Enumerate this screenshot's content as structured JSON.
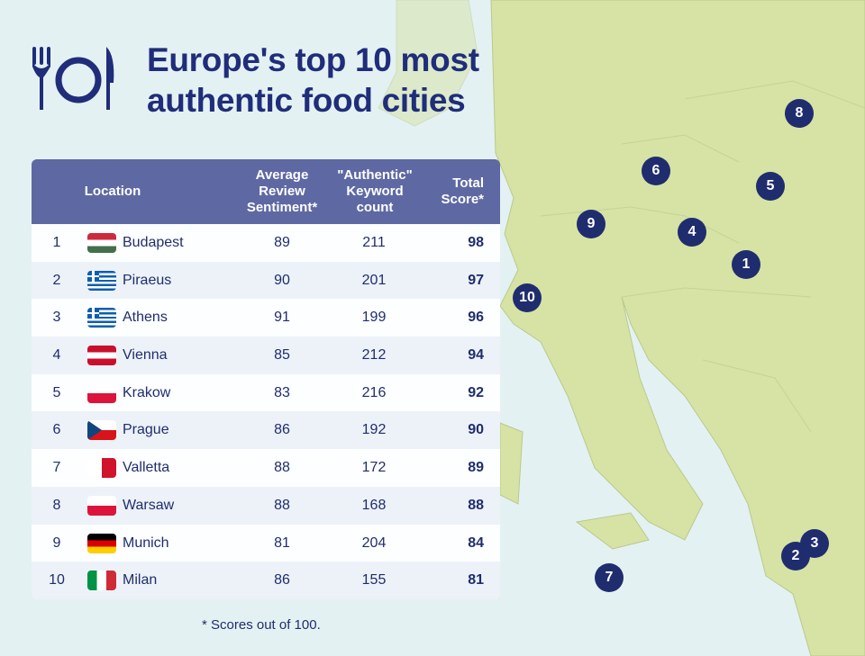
{
  "title_line1": "Europe's top 10 most",
  "title_line2": "authentic food cities",
  "icon": "fork-plate-knife-icon",
  "colors": {
    "title": "#1f2d7a",
    "header": "#5e69a3",
    "marker": "#1f2d6e",
    "land": "#d6e3a4",
    "sea": "#e4f1f3"
  },
  "chart_data": {
    "type": "table",
    "columns": [
      "",
      "Location",
      "Average Review Sentiment*",
      "\"Authentic\" Keyword count",
      "Total Score*"
    ],
    "header": {
      "location": "Location",
      "avg1": "Average",
      "avg2": "Review",
      "avg3": "Sentiment*",
      "kw1": "\"Authentic\"",
      "kw2": "Keyword",
      "kw3": "count",
      "tot1": "Total",
      "tot2": "Score*"
    },
    "rows": [
      {
        "rank": "1",
        "city": "Budapest",
        "flag": "HU",
        "avg": "89",
        "kw": "211",
        "total": "98"
      },
      {
        "rank": "2",
        "city": "Piraeus",
        "flag": "GR",
        "avg": "90",
        "kw": "201",
        "total": "97"
      },
      {
        "rank": "3",
        "city": "Athens",
        "flag": "GR",
        "avg": "91",
        "kw": "199",
        "total": "96"
      },
      {
        "rank": "4",
        "city": "Vienna",
        "flag": "AT",
        "avg": "85",
        "kw": "212",
        "total": "94"
      },
      {
        "rank": "5",
        "city": "Krakow",
        "flag": "PL",
        "avg": "83",
        "kw": "216",
        "total": "92"
      },
      {
        "rank": "6",
        "city": "Prague",
        "flag": "CZ",
        "avg": "86",
        "kw": "192",
        "total": "90"
      },
      {
        "rank": "7",
        "city": "Valletta",
        "flag": "MT",
        "avg": "88",
        "kw": "172",
        "total": "89"
      },
      {
        "rank": "8",
        "city": "Warsaw",
        "flag": "PL",
        "avg": "88",
        "kw": "168",
        "total": "88"
      },
      {
        "rank": "9",
        "city": "Munich",
        "flag": "DE",
        "avg": "81",
        "kw": "204",
        "total": "84"
      },
      {
        "rank": "10",
        "city": "Milan",
        "flag": "IT",
        "avg": "86",
        "kw": "155",
        "total": "81"
      }
    ],
    "footnote": "* Scores out of 100."
  },
  "map_markers": [
    "1",
    "2",
    "3",
    "4",
    "5",
    "6",
    "7",
    "8",
    "9",
    "10"
  ]
}
